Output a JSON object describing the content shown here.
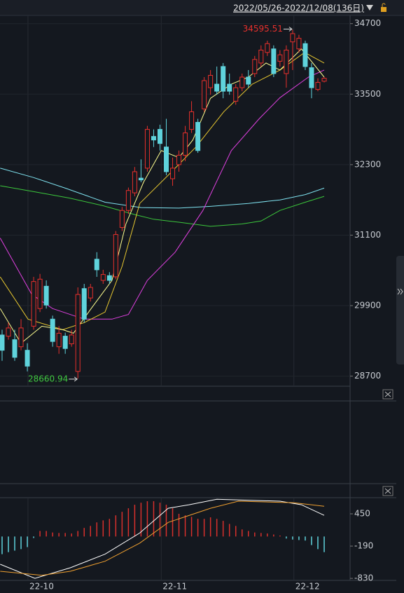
{
  "toolbar": {
    "date_range": "2022/05/26-2022/12/08(136日)"
  },
  "chart_data": [
    {
      "type": "candlestick",
      "up_color": "#e8302c",
      "down_color": "#5fd3dc",
      "grid": true,
      "ylim": [
        28540,
        34840
      ],
      "yticks": [
        34700,
        33500,
        32300,
        31100,
        29900,
        28700
      ],
      "xlim": [
        -0.33,
        55.1
      ],
      "xticks": [
        {
          "value": 4.1,
          "label": "22-10"
        },
        {
          "value": 25.2,
          "label": "22-11"
        },
        {
          "value": 46.2,
          "label": "22-12"
        }
      ],
      "candles": [
        [
          29400,
          29490,
          28960,
          29140
        ],
        [
          29380,
          29610,
          29320,
          29520
        ],
        [
          29320,
          29490,
          28960,
          29020
        ],
        [
          29200,
          29670,
          29140,
          29520
        ],
        [
          29140,
          29260,
          28780,
          28870
        ],
        [
          29550,
          30390,
          29490,
          30310
        ],
        [
          29850,
          30440,
          29790,
          30350
        ],
        [
          30230,
          30330,
          29850,
          29910
        ],
        [
          29670,
          29730,
          29200,
          29290
        ],
        [
          29200,
          29550,
          29080,
          29430
        ],
        [
          29380,
          29440,
          29080,
          29170
        ],
        [
          29250,
          29490,
          29200,
          29400
        ],
        [
          28780,
          30210,
          28660.94,
          30090
        ],
        [
          30190,
          30270,
          29610,
          29670
        ],
        [
          30030,
          30270,
          29970,
          30210
        ],
        [
          30690,
          30810,
          30390,
          30510
        ],
        [
          30330,
          30510,
          30270,
          30430
        ],
        [
          30410,
          30470,
          30270,
          30330
        ],
        [
          30390,
          31170,
          30350,
          31110
        ],
        [
          31230,
          31580,
          31170,
          31520
        ],
        [
          31520,
          31910,
          31460,
          31860
        ],
        [
          31820,
          32260,
          31760,
          32180
        ],
        [
          32070,
          32390,
          32000,
          32040
        ],
        [
          32240,
          32960,
          32180,
          32900
        ],
        [
          32780,
          32900,
          32600,
          32720
        ],
        [
          32900,
          32980,
          32540,
          32660
        ],
        [
          32600,
          33080,
          32120,
          32180
        ],
        [
          32060,
          32420,
          31940,
          32240
        ],
        [
          32300,
          32540,
          32180,
          32460
        ],
        [
          32460,
          32960,
          32360,
          32840
        ],
        [
          32900,
          33380,
          32840,
          33200
        ],
        [
          33020,
          33080,
          32500,
          32540
        ],
        [
          33250,
          33790,
          33200,
          33730
        ],
        [
          33610,
          33910,
          33490,
          33820
        ],
        [
          33670,
          33970,
          33490,
          33550
        ],
        [
          33970,
          34030,
          33430,
          33550
        ],
        [
          33670,
          33850,
          33490,
          33550
        ],
        [
          33380,
          33670,
          33320,
          33610
        ],
        [
          33610,
          33850,
          33550,
          33790
        ],
        [
          33790,
          33910,
          33610,
          33670
        ],
        [
          33850,
          34150,
          33790,
          34090
        ],
        [
          34030,
          34330,
          33970,
          34250
        ],
        [
          34210,
          34410,
          34150,
          34360
        ],
        [
          34270,
          34330,
          33790,
          33850
        ],
        [
          34060,
          34250,
          33970,
          34170
        ],
        [
          33850,
          34330,
          33610,
          34250
        ],
        [
          34390,
          34595.51,
          33910,
          34530
        ],
        [
          34270,
          34510,
          34210,
          34450
        ],
        [
          34360,
          34410,
          33910,
          33970
        ],
        [
          33950,
          34030,
          33430,
          33610
        ],
        [
          33580,
          33770,
          33550,
          33700
        ],
        [
          33720,
          33790,
          33700,
          33770
        ]
      ],
      "lines": [
        {
          "color": "#7fe3f0",
          "x": [
            -0.3,
            5,
            10,
            16.3,
            22,
            28,
            33,
            39,
            44,
            48,
            51
          ],
          "values": [
            32240,
            32080,
            31900,
            31660,
            31570,
            31560,
            31590,
            31640,
            31700,
            31790,
            31900
          ]
        },
        {
          "color": "#3cc83c",
          "x": [
            -0.3,
            5,
            10.7,
            16,
            21,
            24,
            28,
            33,
            38,
            41,
            44,
            48,
            51
          ],
          "values": [
            31940,
            31840,
            31730,
            31600,
            31450,
            31370,
            31320,
            31250,
            31290,
            31340,
            31520,
            31660,
            31760
          ]
        },
        {
          "color": "#e040e0",
          "x": [
            -0.3,
            4.7,
            8,
            13,
            17.4,
            20,
            23,
            27.4,
            31.8,
            36.3,
            40.7,
            44,
            48.5,
            51
          ],
          "values": [
            31050,
            30090,
            29850,
            29670,
            29670,
            29750,
            30330,
            30810,
            31520,
            32540,
            33080,
            33440,
            33790,
            33910
          ]
        },
        {
          "color": "#e8c830",
          "x": [
            -0.3,
            4.1,
            9.6,
            13,
            16.3,
            19,
            21.8,
            26.3,
            30.7,
            35.1,
            39.6,
            44,
            47.9,
            51
          ],
          "values": [
            30390,
            29670,
            29490,
            29610,
            29790,
            30570,
            31640,
            32120,
            32600,
            33200,
            33670,
            33910,
            34210,
            34030
          ]
        },
        {
          "color": "#ffff90",
          "x": [
            -0.3,
            3,
            6.3,
            9.6,
            11.3,
            14.1,
            17.4,
            19.6,
            22.4,
            25.2,
            28,
            30.2,
            33,
            36.3,
            39,
            41.8,
            44,
            47.4,
            51
          ],
          "values": [
            29850,
            29260,
            29550,
            29490,
            29430,
            29850,
            30330,
            31290,
            32000,
            32540,
            32420,
            32720,
            33430,
            33670,
            33790,
            34030,
            33910,
            34270,
            33790
          ]
        }
      ]
    },
    {
      "type": "macd",
      "up_color": "#d8302c",
      "down_color": "#5fd3dc",
      "ylim": [
        -870,
        770
      ],
      "yticks": [
        450,
        -190,
        -830
      ],
      "bars": [
        -350,
        -310,
        -280,
        -250,
        -210,
        -30,
        110,
        110,
        80,
        70,
        70,
        60,
        110,
        170,
        210,
        280,
        320,
        350,
        420,
        490,
        560,
        630,
        670,
        700,
        700,
        670,
        630,
        560,
        450,
        420,
        390,
        350,
        350,
        380,
        350,
        310,
        250,
        210,
        140,
        110,
        80,
        70,
        60,
        40,
        20,
        -40,
        -60,
        -70,
        -80,
        -170,
        -250,
        -310
      ],
      "lines": [
        {
          "color": "#ffffff",
          "x": [
            -0.3,
            5.2,
            10.8,
            16.3,
            21.8,
            26.3,
            29.6,
            34,
            44,
            47.4,
            51
          ],
          "values": [
            -550,
            -830,
            -620,
            -350,
            70,
            560,
            630,
            740,
            700,
            630,
            420
          ]
        },
        {
          "color": "#f0a030",
          "x": [
            -0.3,
            6.3,
            10.8,
            16.3,
            21.8,
            26.3,
            33,
            37.4,
            46.2,
            51
          ],
          "values": [
            -690,
            -770,
            -690,
            -490,
            -130,
            280,
            560,
            700,
            670,
            600
          ]
        }
      ]
    }
  ]
}
